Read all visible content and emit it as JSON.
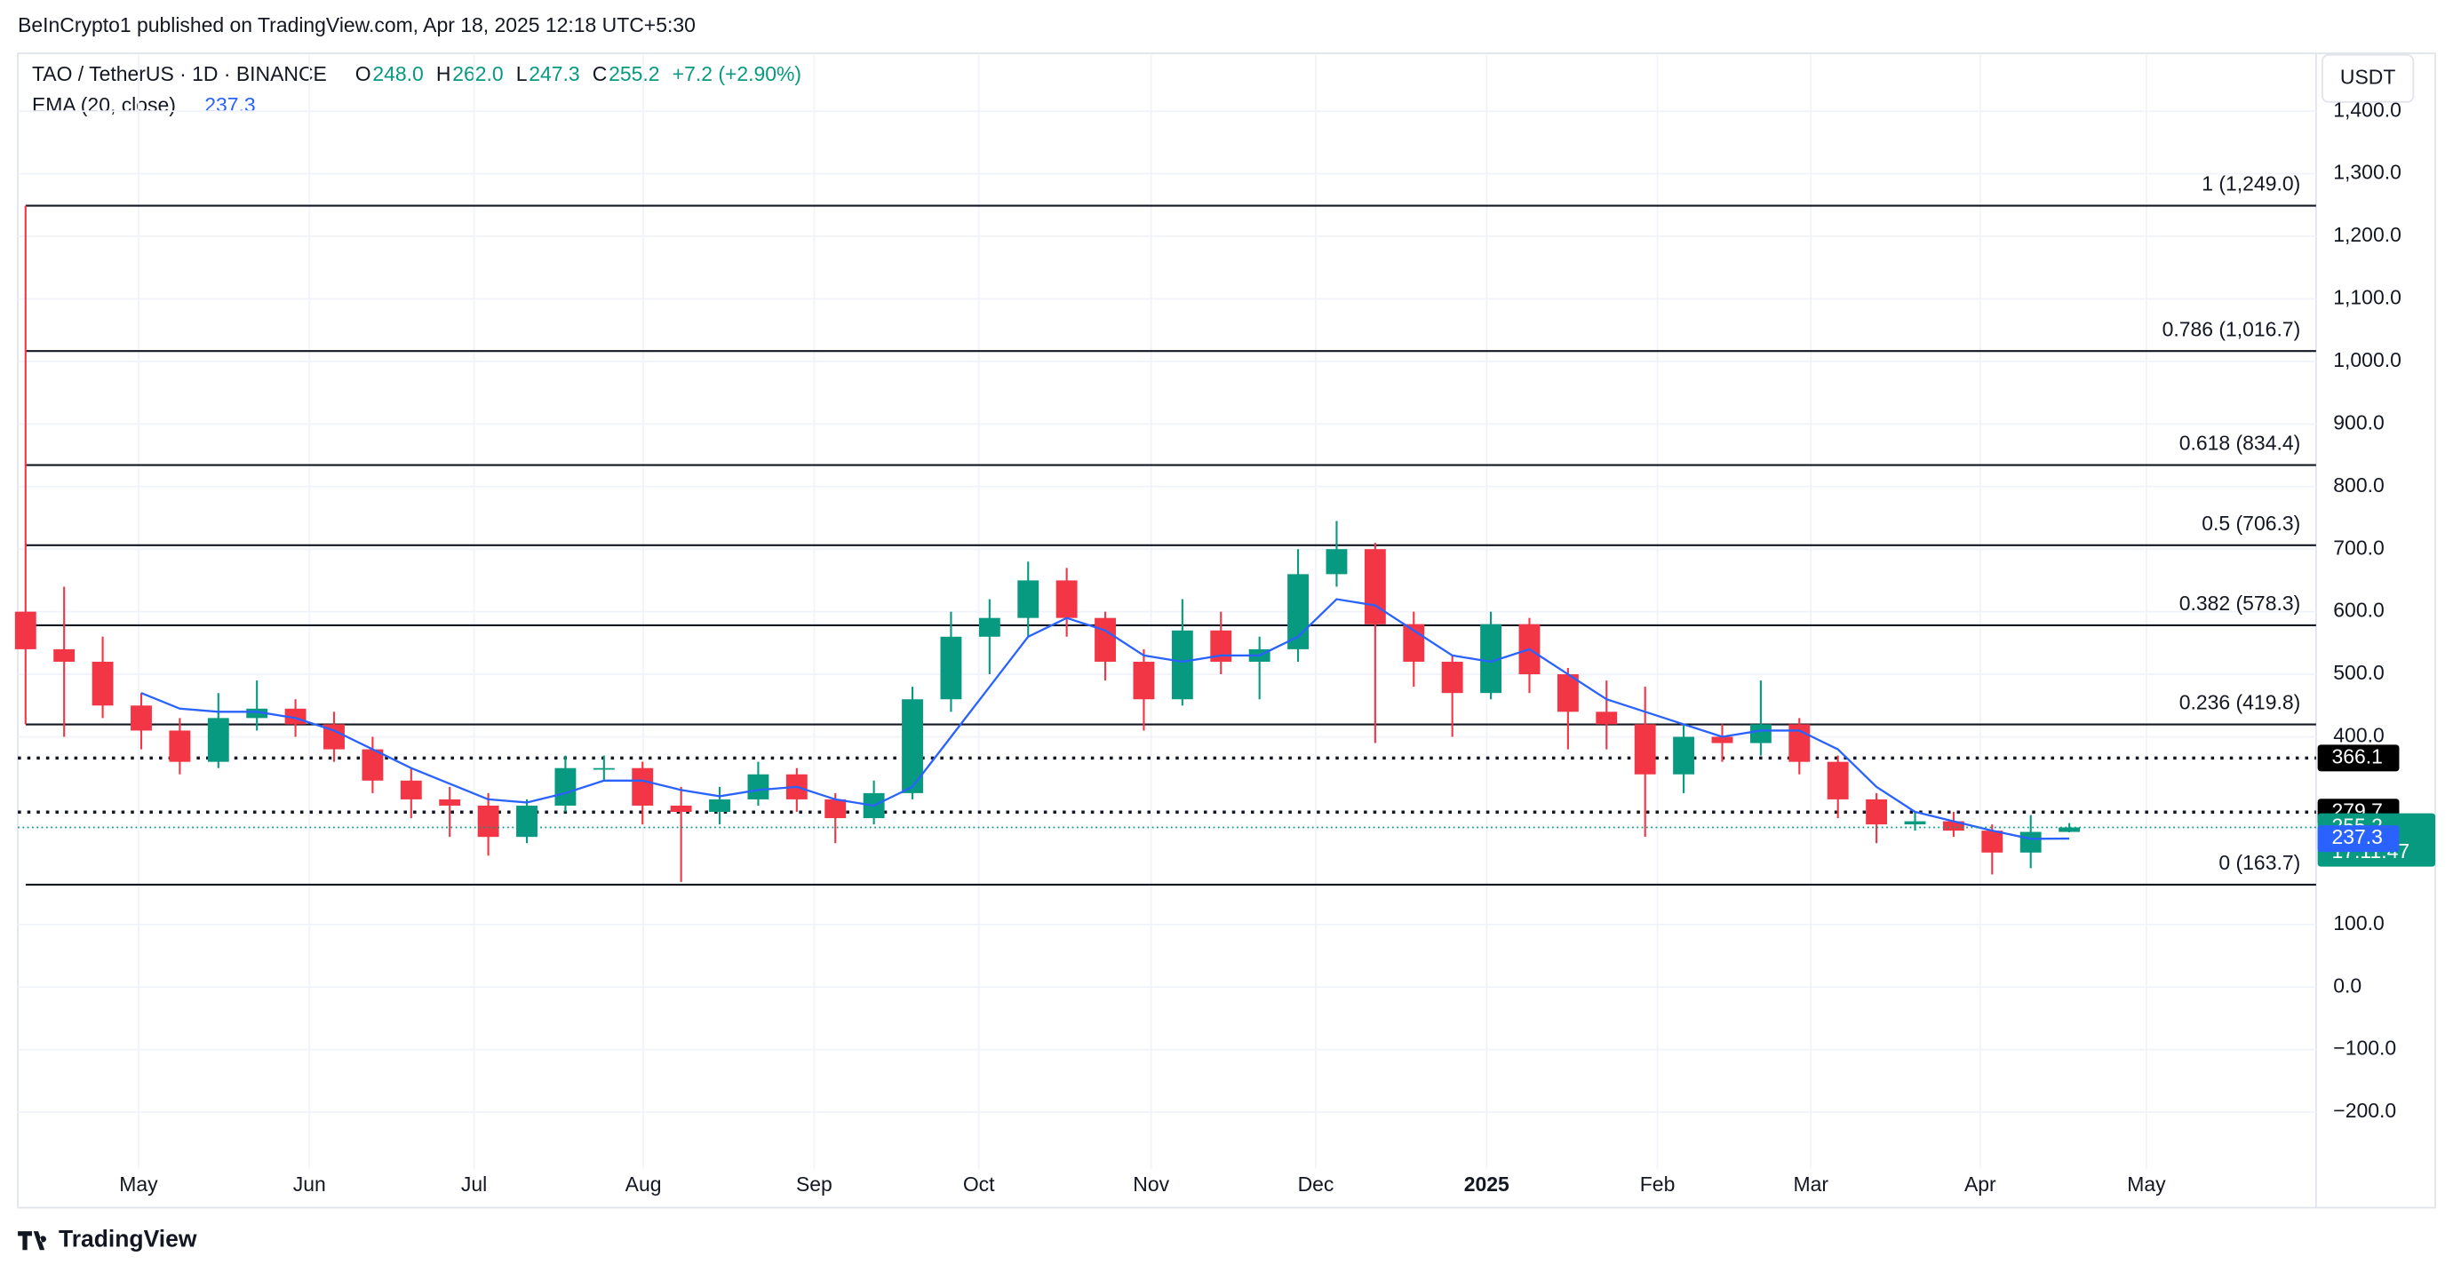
{
  "chart_data": {
    "type": "candlestick",
    "published": "BeInCrypto1 published on TradingView.com, Apr 18, 2025 12:18 UTC+5:30",
    "symbol": "TAO / TetherUS · 1D · BINANCE",
    "ohlc_header": [
      {
        "key": "O",
        "text": "248.0"
      },
      {
        "key": "H",
        "text": "262.0"
      },
      {
        "key": "L",
        "text": "247.3"
      },
      {
        "key": "C",
        "text": "255.2"
      }
    ],
    "change": "+7.2 (+2.90%)",
    "indicator": {
      "name": "EMA (20, close)",
      "text": "237.3"
    },
    "currency": "USDT",
    "brand": "TradingView",
    "up_color": "#089981",
    "down_color": "#f23645",
    "ema_color": "#2962ff",
    "series": [
      {
        "name": "open",
        "values": [
          600,
          540,
          520,
          450,
          410,
          360,
          430,
          445,
          420,
          380,
          330,
          300,
          290,
          240,
          290,
          350,
          350,
          290,
          280,
          300,
          340,
          300,
          270,
          310,
          460,
          560,
          590,
          650,
          590,
          520,
          460,
          570,
          520,
          540,
          660,
          700,
          580,
          520,
          470,
          580,
          500,
          440,
          420,
          340,
          400,
          390,
          420,
          360,
          300,
          260,
          265,
          250,
          215,
          248
        ]
      },
      {
        "name": "high",
        "values": [
          1249,
          640,
          560,
          470,
          430,
          470,
          490,
          460,
          440,
          400,
          350,
          320,
          310,
          300,
          370,
          370,
          360,
          320,
          320,
          360,
          350,
          310,
          330,
          480,
          600,
          620,
          680,
          670,
          600,
          540,
          620,
          600,
          560,
          700,
          745,
          710,
          600,
          530,
          600,
          590,
          510,
          490,
          480,
          420,
          420,
          490,
          430,
          370,
          310,
          280,
          280,
          260,
          275,
          262
        ]
      },
      {
        "name": "low",
        "values": [
          420,
          400,
          430,
          380,
          340,
          350,
          410,
          400,
          360,
          310,
          270,
          240,
          210,
          230,
          280,
          330,
          260,
          168,
          260,
          290,
          280,
          230,
          260,
          300,
          440,
          500,
          560,
          560,
          490,
          410,
          450,
          500,
          460,
          520,
          640,
          390,
          480,
          400,
          460,
          470,
          380,
          380,
          240,
          310,
          360,
          370,
          340,
          270,
          230,
          250,
          240,
          180,
          190,
          247.3
        ]
      },
      {
        "name": "close",
        "values": [
          540,
          520,
          450,
          410,
          360,
          430,
          445,
          420,
          380,
          330,
          300,
          290,
          240,
          290,
          350,
          350,
          290,
          280,
          300,
          340,
          300,
          270,
          310,
          460,
          560,
          590,
          650,
          590,
          520,
          460,
          570,
          520,
          540,
          660,
          700,
          580,
          520,
          470,
          580,
          500,
          440,
          420,
          340,
          400,
          390,
          420,
          360,
          300,
          260,
          265,
          250,
          215,
          248,
          255.2
        ]
      },
      {
        "name": "ema",
        "values": [
          null,
          null,
          null,
          470,
          445,
          440,
          440,
          430,
          410,
          380,
          350,
          325,
          300,
          295,
          310,
          330,
          330,
          315,
          305,
          315,
          320,
          300,
          290,
          320,
          400,
          480,
          560,
          590,
          570,
          530,
          520,
          530,
          530,
          560,
          620,
          610,
          570,
          530,
          520,
          540,
          500,
          460,
          440,
          420,
          400,
          410,
          410,
          380,
          320,
          280,
          265,
          250,
          237,
          237.3
        ]
      }
    ],
    "xlim": [
      -0.2,
      59.4
    ],
    "xticks": [
      {
        "value": 2.93,
        "label": "May"
      },
      {
        "value": 7.36,
        "label": "Jun"
      },
      {
        "value": 11.63,
        "label": "Jul"
      },
      {
        "value": 16.02,
        "label": "Aug"
      },
      {
        "value": 20.45,
        "label": "Sep"
      },
      {
        "value": 24.72,
        "label": "Oct"
      },
      {
        "value": 29.19,
        "label": "Nov"
      },
      {
        "value": 33.46,
        "label": "Dec"
      },
      {
        "value": 37.89,
        "label": "2025"
      },
      {
        "value": 42.32,
        "label": "Feb"
      },
      {
        "value": 46.3,
        "label": "Mar"
      },
      {
        "value": 50.69,
        "label": "Apr"
      },
      {
        "value": 55.0,
        "label": "May"
      }
    ],
    "ylim": [
      -290,
      1490
    ],
    "yticks": [
      {
        "value": -200,
        "label": "−200.0"
      },
      {
        "value": -100,
        "label": "−100.0"
      },
      {
        "value": 0,
        "label": "0.0"
      },
      {
        "value": 100,
        "label": "100.0"
      },
      {
        "value": 400,
        "label": "400.0"
      },
      {
        "value": 500,
        "label": "500.0"
      },
      {
        "value": 600,
        "label": "600.0"
      },
      {
        "value": 700,
        "label": "700.0"
      },
      {
        "value": 800,
        "label": "800.0"
      },
      {
        "value": 900,
        "label": "900.0"
      },
      {
        "value": 1000,
        "label": "1,000.0"
      },
      {
        "value": 1100,
        "label": "1,100.0"
      },
      {
        "value": 1200,
        "label": "1,200.0"
      },
      {
        "value": 1300,
        "label": "1,300.0"
      },
      {
        "value": 1400,
        "label": "1,400.0"
      }
    ],
    "grid": true,
    "fib_levels": [
      {
        "value": 1249,
        "label": "1 (1,249.0)"
      },
      {
        "value": 1016.7,
        "label": "0.786 (1,016.7)"
      },
      {
        "value": 834.4,
        "label": "0.618 (834.4)"
      },
      {
        "value": 706.3,
        "label": "0.5 (706.3)"
      },
      {
        "value": 578.3,
        "label": "0.382 (578.3)"
      },
      {
        "value": 419.8,
        "label": "0.236 (419.8)"
      },
      {
        "value": 163.7,
        "label": "0 (163.7)"
      }
    ],
    "dotted_levels": [
      366.1,
      279.7
    ],
    "price_tags": [
      {
        "value": 366.1,
        "color": "#000000"
      },
      {
        "value": 279.7,
        "color": "#000000"
      },
      {
        "value": 255.2,
        "color": "#089981",
        "countdown": "17:11:47"
      },
      {
        "value": 237.3,
        "color": "#2962ff"
      }
    ]
  }
}
